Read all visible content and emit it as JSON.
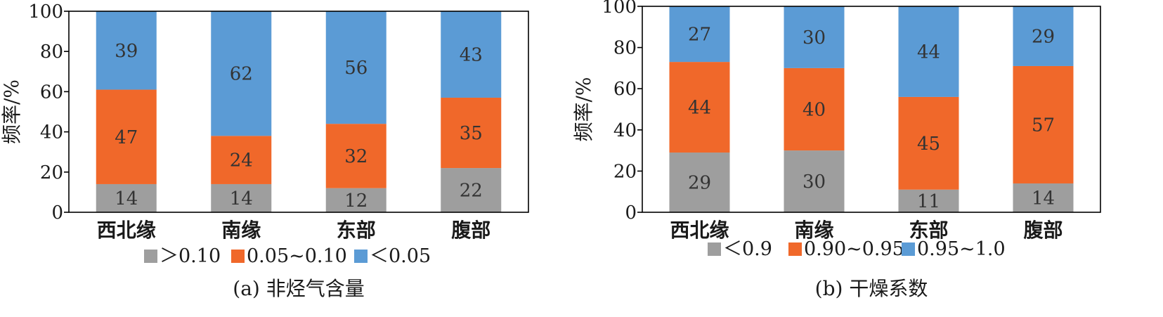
{
  "colors": {
    "gray": "#9e9e9e",
    "orange": "#f0682a",
    "blue": "#5b9bd5"
  },
  "chart_data": [
    {
      "type": "bar",
      "stacked": true,
      "title": "(a) 非烃气含量",
      "ylabel": "频率/%",
      "ylim": [
        0,
        100
      ],
      "yticks": [
        0,
        20,
        40,
        60,
        80,
        100
      ],
      "categories": [
        "西北缘",
        "南缘",
        "东部",
        "腹部"
      ],
      "series": [
        {
          "name": ">0.10",
          "color": "#9e9e9e",
          "values": [
            14,
            14,
            12,
            22
          ]
        },
        {
          "name": "0.05~0.10",
          "color": "#f0682a",
          "values": [
            47,
            24,
            32,
            35
          ]
        },
        {
          "name": "<0.05",
          "color": "#5b9bd5",
          "values": [
            39,
            62,
            56,
            43
          ]
        }
      ],
      "legend_position": "bottom",
      "grid": false
    },
    {
      "type": "bar",
      "stacked": true,
      "title": "(b) 干燥系数",
      "ylabel": "频率/%",
      "ylim": [
        0,
        100
      ],
      "yticks": [
        0,
        20,
        40,
        60,
        80,
        100
      ],
      "categories": [
        "西北缘",
        "南缘",
        "东部",
        "腹部"
      ],
      "series": [
        {
          "name": "<0.9",
          "color": "#9e9e9e",
          "values": [
            29,
            30,
            11,
            14
          ]
        },
        {
          "name": "0.90~0.95",
          "color": "#f0682a",
          "values": [
            44,
            40,
            45,
            57
          ]
        },
        {
          "name": "0.95~1.0",
          "color": "#5b9bd5",
          "values": [
            27,
            30,
            44,
            29
          ]
        }
      ],
      "legend_position": "bottom",
      "grid": false
    }
  ]
}
